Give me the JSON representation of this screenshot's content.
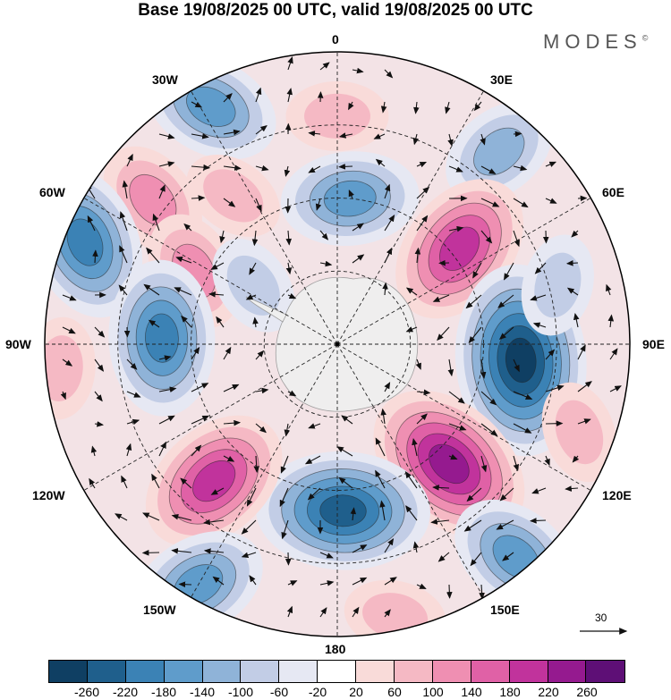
{
  "title": "Base 19/08/2025 00 UTC, valid 19/08/2025 00 UTC",
  "brand": "MODES",
  "brand_mark": "©",
  "longitude_labels": {
    "lon_0": "0",
    "lon_30e": "30E",
    "lon_60e": "60E",
    "lon_90e": "90E",
    "lon_120e": "120E",
    "lon_150e": "150E",
    "lon_180": "180",
    "lon_150w": "150W",
    "lon_120w": "120W",
    "lon_90w": "90W",
    "lon_60w": "60W",
    "lon_30w": "30W"
  },
  "reference_vector": "30",
  "colorbar": {
    "colors": [
      "#0f3f63",
      "#1f5f8c",
      "#3b82b5",
      "#5f9ccb",
      "#8fb3d8",
      "#c2cde6",
      "#e6e8f3",
      "#ffffff",
      "#f9dbd9",
      "#f5b9c4",
      "#ef8fb2",
      "#e061a6",
      "#c1339c",
      "#951a8f",
      "#5e0f76"
    ],
    "ticks": [
      "-260",
      "-220",
      "-180",
      "-140",
      "-100",
      "-60",
      "-20",
      "20",
      "60",
      "100",
      "140",
      "180",
      "220",
      "260"
    ]
  },
  "map": {
    "colors": {
      "disk_fill": "#f3e3e6",
      "antarctica": "#efefef",
      "graticule": "#222222"
    },
    "anomalies": [
      {
        "name": "high-anomaly-0-north",
        "value": 90,
        "lon": 0,
        "r": 0.78
      },
      {
        "name": "low-anomaly-30w",
        "value": -150,
        "lon": -28,
        "r": 0.92
      },
      {
        "name": "low-anomaly-45e",
        "value": -130,
        "lon": 40,
        "r": 0.86
      },
      {
        "name": "low-anomaly-south-atlantic",
        "value": -170,
        "lon": 5,
        "r": 0.5
      },
      {
        "name": "high-anomaly-60w",
        "value": 110,
        "lon": -52,
        "r": 0.8
      },
      {
        "name": "high-anomaly-45w",
        "value": 60,
        "lon": -35,
        "r": 0.62
      },
      {
        "name": "high-anomaly-50e",
        "value": 200,
        "lon": 52,
        "r": 0.53
      },
      {
        "name": "low-anomaly-75w",
        "value": -190,
        "lon": -68,
        "r": 0.93
      },
      {
        "name": "high-anomaly-70w",
        "value": 130,
        "lon": -63,
        "r": 0.55
      },
      {
        "name": "low-anomaly-65w-inner",
        "value": -70,
        "lon": -55,
        "r": 0.35
      },
      {
        "name": "low-anomaly-100w",
        "value": -210,
        "lon": -88,
        "r": 0.6
      },
      {
        "name": "low-anomaly-95e",
        "value": -260,
        "lon": 95,
        "r": 0.63
      },
      {
        "name": "low-anomaly-70e",
        "value": -70,
        "lon": 75,
        "r": 0.78
      },
      {
        "name": "high-anomaly-135e",
        "value": 240,
        "lon": 137,
        "r": 0.56
      },
      {
        "name": "low-anomaly-180",
        "value": -250,
        "lon": 178,
        "r": 0.57
      },
      {
        "name": "high-anomaly-145w",
        "value": 210,
        "lon": -138,
        "r": 0.63
      },
      {
        "name": "low-anomaly-140w",
        "value": -160,
        "lon": -150,
        "r": 0.95
      },
      {
        "name": "low-anomaly-150e",
        "value": -150,
        "lon": 140,
        "r": 0.95
      },
      {
        "name": "high-anomaly-95w-outer",
        "value": 60,
        "lon": -95,
        "r": 0.95
      },
      {
        "name": "high-anomaly-110e",
        "value": 70,
        "lon": 110,
        "r": 0.88
      },
      {
        "name": "high-anomaly-170e-outer",
        "value": 80,
        "lon": 168,
        "r": 0.95
      }
    ]
  }
}
